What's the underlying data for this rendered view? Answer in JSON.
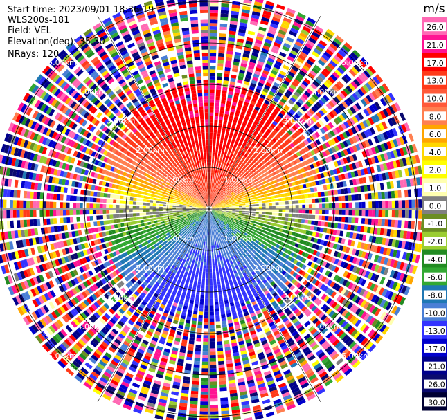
{
  "info": {
    "start_time": "Start time: 2023/09/01 18:36:19",
    "instrument": "WLS200s-181",
    "field": "Field: VEL",
    "elevation": "Elevation(deg): 35.30",
    "nrays": "NRays: 120"
  },
  "chart_data": {
    "type": "heatmap",
    "projection": "polar PPI",
    "field": "VEL",
    "nrays": 120,
    "elevation_deg": 35.3,
    "range_rings": [
      {
        "range_km": 1.0,
        "label": "1.00km"
      },
      {
        "range_km": 2.0,
        "label": "2.00km"
      },
      {
        "range_km": 3.0,
        "label": "3.00km"
      },
      {
        "range_km": 4.0,
        "label": "4.00km"
      },
      {
        "range_km": 5.0,
        "label": "5.00km"
      }
    ],
    "max_range_km": 5.2,
    "clean_range_km": {
      "north_sector": 3.0,
      "south_sector": 2.7,
      "east_west": 2.5
    },
    "pattern": "receding velocities (red/orange, up to ~+17 m/s) in the northern half, approaching velocities (blue, down to ~-17 m/s) in the southern half; noisy data beyond ~3 km",
    "colorbar": {
      "unit": "m/s",
      "ticks": [
        "26.0",
        "21.0",
        "17.0",
        "13.0",
        "10.0",
        "8.0",
        "6.0",
        "4.0",
        "2.0",
        "1.0",
        "0.0",
        "-1.0",
        "-2.0",
        "-4.0",
        "-6.0",
        "-8.0",
        "-10.0",
        "-13.0",
        "-17.0",
        "-21.0",
        "-26.0",
        "-30.0"
      ],
      "colors": [
        "#ff69b4",
        "#ff1493",
        "#ff0000",
        "#ff3a1a",
        "#ff5a3a",
        "#ff7f50",
        "#ffa500",
        "#ffd700",
        "#ffff00",
        "#ffffb0",
        "#808080",
        "#6b8e23",
        "#9acd32",
        "#228b22",
        "#32a832",
        "#1f78b4",
        "#4a7fd6",
        "#3333ff",
        "#0000cd",
        "#00008b",
        "#0a0a6e",
        "#000033"
      ]
    }
  }
}
